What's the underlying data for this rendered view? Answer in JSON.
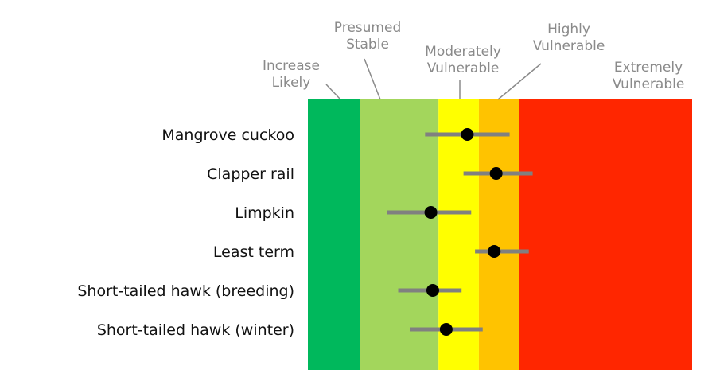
{
  "chart_data": {
    "type": "scatter",
    "title": "",
    "xlabel": "",
    "ylabel": "",
    "xlim": [
      0,
      10
    ],
    "zones": [
      {
        "name": "Increase Likely",
        "lines": [
          "Increase",
          "Likely"
        ],
        "from": 0,
        "to": 1.35,
        "color": "#00b85c"
      },
      {
        "name": "Presumed Stable",
        "lines": [
          "Presumed",
          "Stable"
        ],
        "from": 1.35,
        "to": 3.4,
        "color": "#a3d65c"
      },
      {
        "name": "Moderately Vulnerable",
        "lines": [
          "Moderately",
          "Vulnerable"
        ],
        "from": 3.4,
        "to": 4.45,
        "color": "#ffff00"
      },
      {
        "name": "Highly Vulnerable",
        "lines": [
          "Highly",
          "Vulnerable"
        ],
        "from": 4.45,
        "to": 5.5,
        "color": "#ffc300"
      },
      {
        "name": "Extremely Vulnerable",
        "lines": [
          "Extremely",
          "Vulnerable"
        ],
        "from": 5.5,
        "to": 10,
        "color": "#ff2600"
      }
    ],
    "points": [
      {
        "label": "Mangrove cuckoo",
        "value": 4.15,
        "low": 3.05,
        "high": 5.25
      },
      {
        "label": "Clapper rail",
        "value": 4.9,
        "low": 4.05,
        "high": 5.85
      },
      {
        "label": "Limpkin",
        "value": 3.2,
        "low": 2.05,
        "high": 4.25
      },
      {
        "label": "Least term",
        "value": 4.85,
        "low": 4.35,
        "high": 5.75
      },
      {
        "label": "Short-tailed hawk (breeding)",
        "value": 3.25,
        "low": 2.35,
        "high": 4.0
      },
      {
        "label": "Short-tailed hawk (winter)",
        "value": 3.6,
        "low": 2.65,
        "high": 4.55
      }
    ],
    "colors": {
      "error_bar": "#808080",
      "point": "#000000",
      "leader": "#8a8a8a"
    }
  }
}
